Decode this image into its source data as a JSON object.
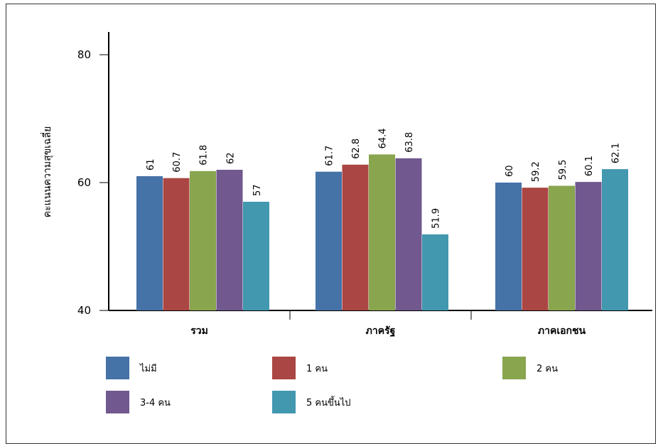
{
  "chart_data": {
    "type": "bar",
    "title": "",
    "xlabel": "",
    "ylabel": "คะแนนความสุขเฉลี่ย",
    "ylim": [
      40,
      80
    ],
    "yticks": [
      40,
      60,
      80
    ],
    "grid": false,
    "legend_position": "bottom",
    "categories": [
      "รวม",
      "ภาครัฐ",
      "ภาคเอกชน"
    ],
    "series": [
      {
        "name": "ไม่มี",
        "color": "#4572a7",
        "values": [
          61,
          61.7,
          60
        ]
      },
      {
        "name": "1 คน",
        "color": "#aa4643",
        "values": [
          60.7,
          62.8,
          59.2
        ]
      },
      {
        "name": "2 คน",
        "color": "#89a54e",
        "values": [
          61.8,
          64.4,
          59.5
        ]
      },
      {
        "name": "3-4 คน",
        "color": "#71588f",
        "values": [
          62,
          63.8,
          60.1
        ]
      },
      {
        "name": "5 คนขึ้นไป",
        "color": "#4198af",
        "values": [
          57,
          51.9,
          62.1
        ]
      }
    ]
  }
}
